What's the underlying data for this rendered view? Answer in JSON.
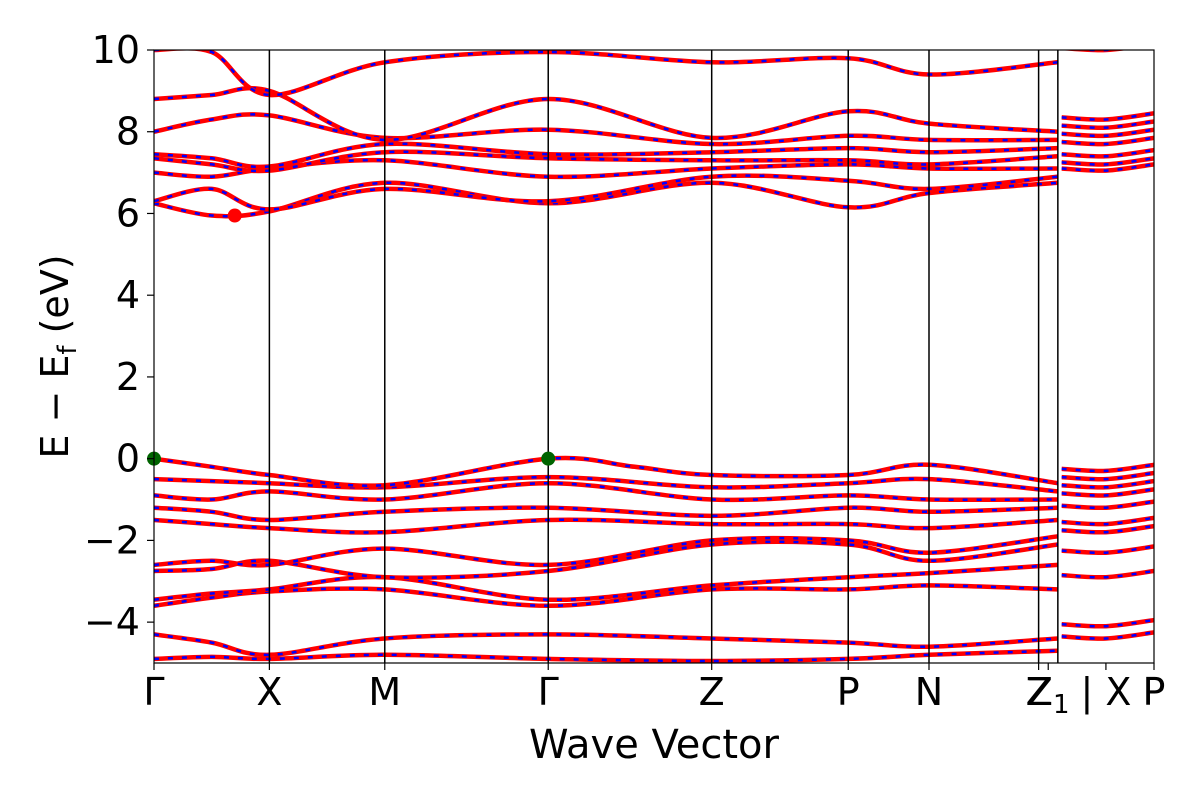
{
  "chart_data": {
    "type": "line",
    "title": "",
    "xlabel": "Wave Vector",
    "ylabel": "E − E",
    "ylabel_sub": "f",
    "ylabel_unit": " (eV)",
    "ylim": [
      -5,
      10
    ],
    "y_ticks": [
      -4,
      -2,
      0,
      2,
      4,
      6,
      8,
      10
    ],
    "y_tick_labels": [
      "−4",
      "−2",
      "0",
      "2",
      "4",
      "6",
      "8",
      "10"
    ],
    "k_points": [
      {
        "label": "Γ",
        "k": 0.0
      },
      {
        "label": "X",
        "k": 0.6
      },
      {
        "label": "M",
        "k": 1.2
      },
      {
        "label": "Γ",
        "k": 2.05
      },
      {
        "label": "Z",
        "k": 2.9
      },
      {
        "label": "P",
        "k": 3.61
      },
      {
        "label": "N",
        "k": 4.03
      },
      {
        "label": "Z",
        "k": 4.6
      },
      {
        "label": "Z",
        "k": 4.7
      }
    ],
    "k_tick_labels": [
      {
        "label": "Γ",
        "k": 0.0
      },
      {
        "label": "X",
        "k": 0.6
      },
      {
        "label": "M",
        "k": 1.2
      },
      {
        "label": "Γ",
        "k": 2.05
      },
      {
        "label": "Z",
        "k": 2.9
      },
      {
        "label": "P",
        "k": 3.61
      },
      {
        "label": "N",
        "k": 4.03
      },
      {
        "label": "Z",
        "k": 4.6
      },
      {
        "label": "Z",
        "k": 4.65,
        "subscript": "1"
      },
      {
        "label": "| X",
        "k": 4.95
      },
      {
        "label": "P",
        "k": 5.2
      }
    ],
    "x_range": [
      0.0,
      5.2
    ],
    "series_colors": {
      "spin_up": "#0000ff",
      "spin_down": "#ff0000"
    },
    "bands": [
      {
        "k": [
          0.0,
          0.3,
          0.6,
          1.2,
          2.05,
          2.9,
          3.61,
          4.03,
          4.7
        ],
        "E": [
          -4.9,
          -4.85,
          -4.9,
          -4.8,
          -4.9,
          -4.95,
          -4.9,
          -4.8,
          -4.7
        ]
      },
      {
        "k": [
          0.0,
          0.3,
          0.6,
          1.2,
          2.05,
          2.9,
          3.61,
          4.03,
          4.7
        ],
        "E": [
          -4.3,
          -4.5,
          -4.8,
          -4.4,
          -4.3,
          -4.4,
          -4.5,
          -4.6,
          -4.4
        ]
      },
      {
        "k": [
          0.0,
          0.3,
          0.6,
          1.2,
          2.05,
          2.9,
          3.61,
          4.03,
          4.7
        ],
        "E": [
          -3.6,
          -3.4,
          -3.25,
          -3.2,
          -3.6,
          -3.2,
          -3.2,
          -3.1,
          -3.2
        ]
      },
      {
        "k": [
          0.0,
          0.3,
          0.6,
          1.2,
          2.05,
          2.9,
          3.61,
          4.03,
          4.7
        ],
        "E": [
          -3.45,
          -3.3,
          -3.2,
          -2.9,
          -3.45,
          -3.1,
          -2.9,
          -2.8,
          -2.6
        ]
      },
      {
        "k": [
          0.0,
          0.3,
          0.6,
          1.2,
          2.05,
          2.9,
          3.61,
          4.03,
          4.7
        ],
        "E": [
          -2.75,
          -2.7,
          -2.5,
          -2.9,
          -2.75,
          -2.1,
          -2.1,
          -2.5,
          -2.1
        ]
      },
      {
        "k": [
          0.0,
          0.3,
          0.6,
          1.2,
          2.05,
          2.9,
          3.61,
          4.03,
          4.7
        ],
        "E": [
          -2.6,
          -2.5,
          -2.6,
          -2.2,
          -2.6,
          -2.0,
          -2.0,
          -2.3,
          -1.9
        ]
      },
      {
        "k": [
          0.0,
          0.3,
          0.6,
          1.2,
          2.05,
          2.9,
          3.61,
          4.03,
          4.7
        ],
        "E": [
          -1.5,
          -1.6,
          -1.7,
          -1.8,
          -1.5,
          -1.6,
          -1.6,
          -1.7,
          -1.5
        ]
      },
      {
        "k": [
          0.0,
          0.3,
          0.6,
          1.2,
          2.05,
          2.9,
          3.61,
          4.03,
          4.7
        ],
        "E": [
          -1.2,
          -1.3,
          -1.5,
          -1.3,
          -1.2,
          -1.4,
          -1.2,
          -1.3,
          -1.2
        ]
      },
      {
        "k": [
          0.0,
          0.3,
          0.6,
          1.2,
          2.05,
          2.9,
          3.61,
          4.03,
          4.7
        ],
        "E": [
          -0.9,
          -1.0,
          -0.8,
          -1.0,
          -0.6,
          -1.0,
          -0.9,
          -1.0,
          -1.0
        ]
      },
      {
        "k": [
          0.0,
          0.3,
          0.6,
          1.2,
          2.05,
          2.9,
          3.61,
          4.03,
          4.7
        ],
        "E": [
          -0.5,
          -0.55,
          -0.6,
          -0.7,
          -0.45,
          -0.7,
          -0.6,
          -0.5,
          -0.8
        ]
      },
      {
        "k": [
          0.0,
          0.3,
          0.6,
          1.2,
          2.05,
          2.5,
          2.9,
          3.61,
          4.03,
          4.7
        ],
        "E": [
          0.0,
          -0.2,
          -0.4,
          -0.65,
          0.0,
          -0.2,
          -0.4,
          -0.4,
          -0.15,
          -0.6
        ]
      },
      {
        "k": [
          0.0,
          0.3,
          0.6,
          1.2,
          2.05,
          2.9,
          3.61,
          4.03,
          4.7
        ],
        "E": [
          6.25,
          5.95,
          6.05,
          6.75,
          6.25,
          6.75,
          6.15,
          6.5,
          6.75
        ]
      },
      {
        "k": [
          0.0,
          0.3,
          0.6,
          1.2,
          2.05,
          2.9,
          3.61,
          4.03,
          4.7
        ],
        "E": [
          6.3,
          6.6,
          6.1,
          6.6,
          6.3,
          6.9,
          6.8,
          6.6,
          6.9
        ]
      },
      {
        "k": [
          0.0,
          0.3,
          0.6,
          1.2,
          2.05,
          2.9,
          3.61,
          4.03,
          4.7
        ],
        "E": [
          7.0,
          6.9,
          7.1,
          7.3,
          6.9,
          7.1,
          7.2,
          7.1,
          7.1
        ]
      },
      {
        "k": [
          0.0,
          0.3,
          0.6,
          1.2,
          2.05,
          2.9,
          3.61,
          4.03,
          4.7
        ],
        "E": [
          7.35,
          7.2,
          7.05,
          7.5,
          7.35,
          7.3,
          7.3,
          7.2,
          7.4
        ]
      },
      {
        "k": [
          0.0,
          0.3,
          0.6,
          1.2,
          2.05,
          2.9,
          3.61,
          4.03,
          4.7
        ],
        "E": [
          7.45,
          7.35,
          7.15,
          7.7,
          7.45,
          7.5,
          7.6,
          7.5,
          7.6
        ]
      },
      {
        "k": [
          0.0,
          0.3,
          0.6,
          1.2,
          2.05,
          2.9,
          3.61,
          4.03,
          4.7
        ],
        "E": [
          8.0,
          8.3,
          8.4,
          7.85,
          8.05,
          7.7,
          7.9,
          7.8,
          7.8
        ]
      },
      {
        "k": [
          0.0,
          0.3,
          0.6,
          1.2,
          2.05,
          2.9,
          3.61,
          4.03,
          4.7
        ],
        "E": [
          8.8,
          8.9,
          9.0,
          7.8,
          8.8,
          7.85,
          8.5,
          8.2,
          8.0
        ]
      },
      {
        "k": [
          0.0,
          0.3,
          0.6,
          1.2,
          2.05,
          2.9,
          3.61,
          4.03,
          4.7
        ],
        "E": [
          10.0,
          9.95,
          8.9,
          9.7,
          9.95,
          9.7,
          9.8,
          9.4,
          9.7
        ]
      }
    ],
    "markers": [
      {
        "label": "VBM",
        "k": 0.0,
        "E": 0.0,
        "color": "#006400"
      },
      {
        "label": "VBM",
        "k": 2.05,
        "E": 0.0,
        "color": "#006400"
      },
      {
        "label": "CBM",
        "k": 0.42,
        "E": 5.95,
        "color": "#ff0000"
      }
    ]
  }
}
